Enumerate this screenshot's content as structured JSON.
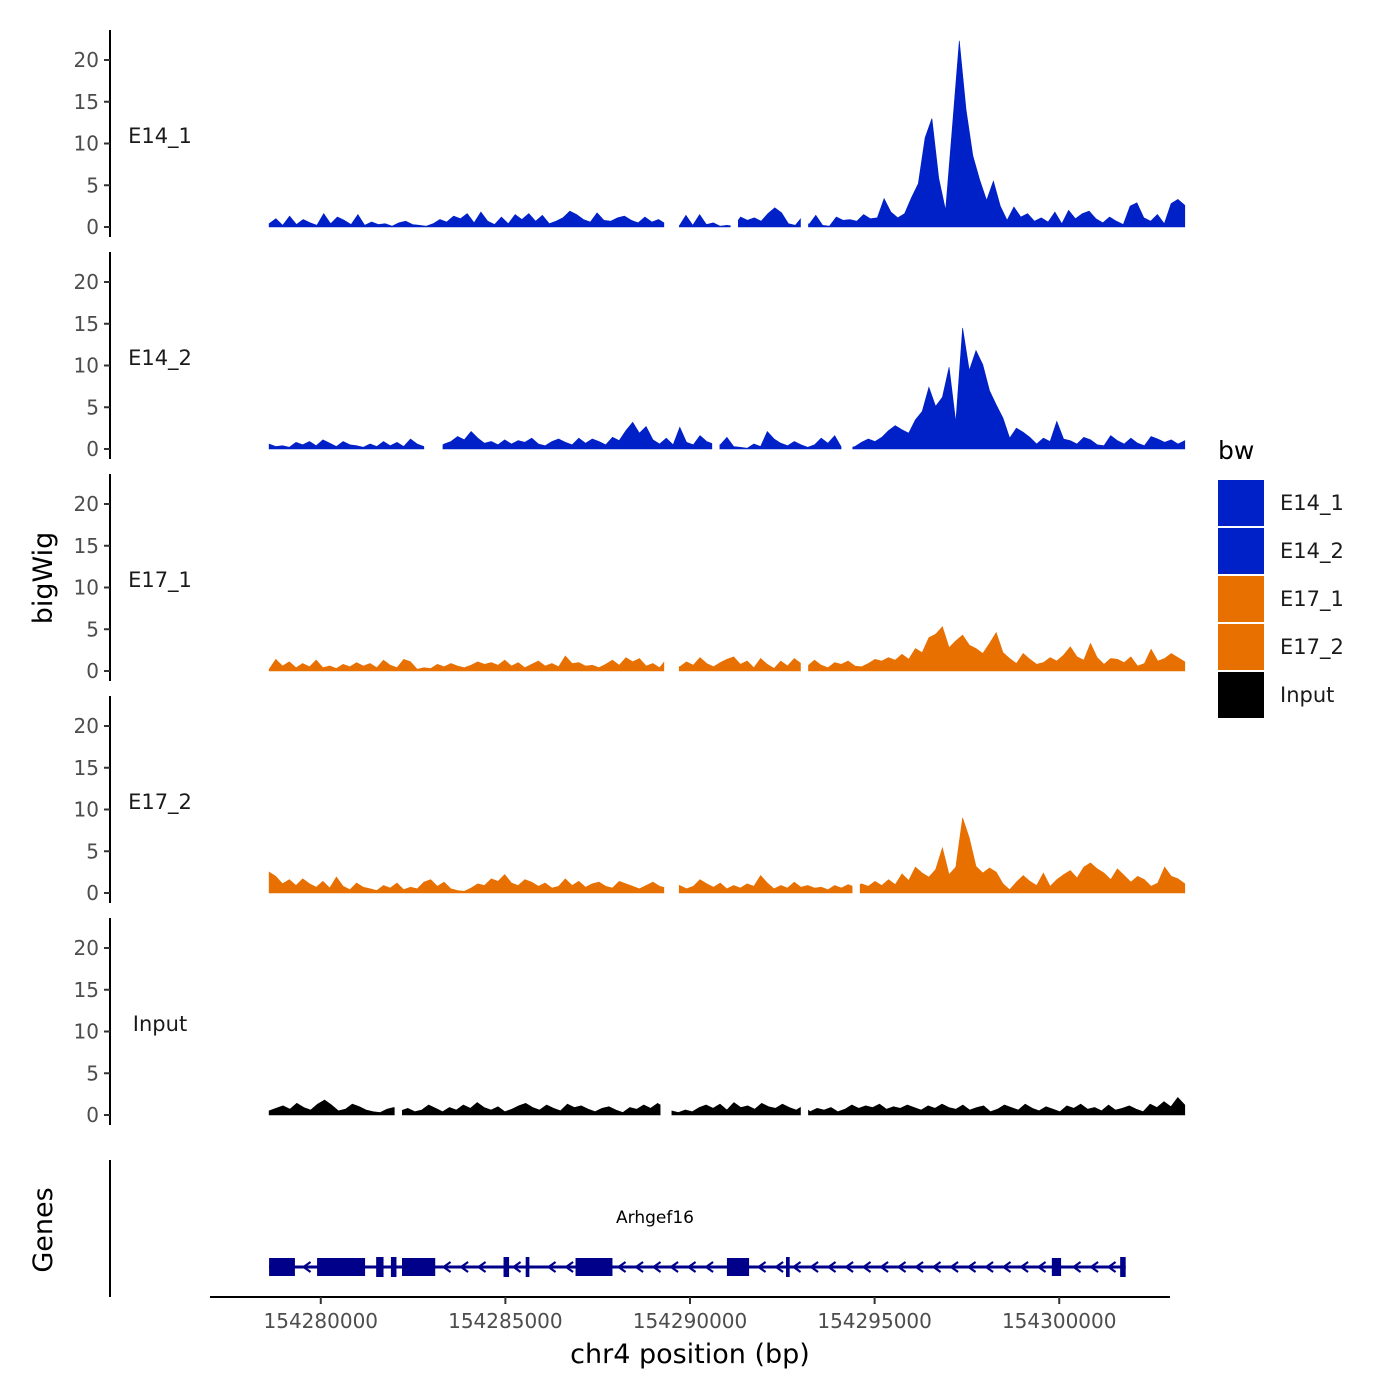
{
  "chart_data": {
    "type": "area",
    "title": "",
    "xlabel": "chr4 position (bp)",
    "ylabel": "bigWig",
    "genes_panel_label": "Genes",
    "xlim": [
      154277000,
      154303000
    ],
    "ylim": [
      0,
      24
    ],
    "x_ticks": [
      154280000,
      154285000,
      154290000,
      154295000,
      154300000
    ],
    "x_tick_labels": [
      "154280000",
      "154285000",
      "154290000",
      "154295000",
      "154300000"
    ],
    "y_ticks": [
      0,
      5,
      10,
      15,
      20
    ],
    "y_tick_labels": [
      "0",
      "5",
      "10",
      "15",
      "20"
    ],
    "x_start": 154278600,
    "x_end": 154303400,
    "legend": {
      "title": "bw",
      "position": "right",
      "entries": [
        {
          "label": "E14_1",
          "color": "#0020C8"
        },
        {
          "label": "E14_2",
          "color": "#0020C8"
        },
        {
          "label": "E17_1",
          "color": "#E87000"
        },
        {
          "label": "E17_2",
          "color": "#E87000"
        },
        {
          "label": "Input",
          "color": "#000000"
        }
      ]
    },
    "series": [
      {
        "name": "E14_1",
        "color": "#0020C8",
        "values": [
          0.4,
          1.0,
          0.2,
          1.3,
          0.3,
          0.9,
          0.5,
          0.2,
          1.6,
          0.4,
          1.2,
          0.8,
          0.3,
          1.5,
          0.2,
          0.6,
          0.3,
          0.4,
          0.1,
          0.5,
          0.7,
          0.3,
          0.2,
          0.1,
          0.4,
          0.9,
          0.6,
          1.3,
          1.0,
          1.6,
          0.5,
          1.8,
          0.7,
          0.3,
          1.2,
          0.4,
          1.5,
          0.9,
          1.6,
          0.7,
          1.4,
          0.4,
          0.7,
          1.1,
          1.9,
          1.5,
          0.9,
          0.6,
          1.7,
          0.8,
          0.7,
          1.1,
          1.3,
          0.8,
          0.5,
          1.2,
          0.6,
          0.9,
          0.4,
          0.2,
          0.1,
          1.4,
          0.2,
          1.5,
          0.3,
          0.5,
          0.1,
          0.2,
          0.1,
          1.2,
          0.8,
          1.1,
          0.7,
          1.6,
          2.3,
          1.7,
          0.4,
          0.2,
          1.2,
          0.3,
          1.4,
          0.2,
          0.1,
          1.2,
          0.8,
          0.9,
          0.7,
          1.5,
          1.0,
          1.1,
          3.4,
          1.8,
          1.1,
          1.6,
          3.5,
          5.2,
          10.7,
          13.0,
          5.8,
          2.0,
          12.0,
          22.3,
          14.0,
          8.5,
          5.6,
          3.2,
          5.5,
          2.5,
          0.8,
          2.4,
          1.2,
          1.6,
          0.7,
          1.1,
          0.6,
          1.8,
          0.4,
          2.0,
          1.0,
          1.6,
          1.9,
          1.0,
          0.5,
          1.2,
          0.7,
          0.3,
          2.5,
          2.9,
          1.1,
          0.7,
          1.5,
          0.4,
          2.8,
          3.3,
          2.6
        ],
        "gaps": [
          [
            154289300,
            154289700
          ],
          [
            154291100,
            154291300
          ],
          [
            154293000,
            154293200
          ]
        ]
      },
      {
        "name": "E14_2",
        "color": "#0020C8",
        "values": [
          0.6,
          0.3,
          0.4,
          0.2,
          0.8,
          0.5,
          0.9,
          0.4,
          1.1,
          0.7,
          0.3,
          0.9,
          0.5,
          0.4,
          0.2,
          0.6,
          0.3,
          0.9,
          0.4,
          0.8,
          0.3,
          1.2,
          0.6,
          0.3,
          0.2,
          0.1,
          0.6,
          0.9,
          1.5,
          1.1,
          2.1,
          1.3,
          0.7,
          0.9,
          0.5,
          1.1,
          0.6,
          1.0,
          0.8,
          1.3,
          0.6,
          0.4,
          0.9,
          1.2,
          0.8,
          0.5,
          1.3,
          0.7,
          1.2,
          0.9,
          0.5,
          1.4,
          1.0,
          2.2,
          3.2,
          1.9,
          2.7,
          1.1,
          0.6,
          1.3,
          0.5,
          2.6,
          0.8,
          0.5,
          1.6,
          0.9,
          0.6,
          0.5,
          1.4,
          0.3,
          0.2,
          0.1,
          0.6,
          0.3,
          2.1,
          1.2,
          0.7,
          0.4,
          0.9,
          0.5,
          0.2,
          0.5,
          1.3,
          0.7,
          1.6,
          0.2,
          0.1,
          0.3,
          0.8,
          1.2,
          0.9,
          1.4,
          2.2,
          2.8,
          2.3,
          1.9,
          3.5,
          4.5,
          7.4,
          5.1,
          6.2,
          9.8,
          3.2,
          14.5,
          9.4,
          11.8,
          10.1,
          7.0,
          5.3,
          3.7,
          1.3,
          2.5,
          2.0,
          1.4,
          0.6,
          1.3,
          0.9,
          3.3,
          1.2,
          1.0,
          0.6,
          1.4,
          1.1,
          0.5,
          0.4,
          1.6,
          1.0,
          0.6,
          1.3,
          0.7,
          0.4,
          1.5,
          1.2,
          0.8,
          1.1,
          0.6,
          1.0
        ],
        "gaps": [
          [
            154282800,
            154283300
          ],
          [
            154290600,
            154290800
          ],
          [
            154294100,
            154294400
          ]
        ]
      },
      {
        "name": "E17_1",
        "color": "#E87000",
        "values": [
          0.2,
          1.4,
          0.6,
          1.1,
          0.4,
          0.9,
          0.5,
          1.3,
          0.4,
          0.6,
          0.3,
          0.8,
          0.5,
          1.0,
          0.6,
          0.9,
          0.4,
          1.3,
          0.7,
          0.4,
          1.4,
          1.1,
          0.2,
          0.4,
          0.3,
          0.8,
          0.5,
          0.9,
          0.6,
          0.4,
          0.7,
          1.1,
          0.8,
          1.0,
          0.7,
          1.3,
          0.6,
          1.0,
          0.4,
          0.8,
          1.2,
          0.6,
          0.9,
          0.5,
          1.8,
          0.9,
          1.0,
          0.6,
          0.7,
          0.4,
          0.8,
          1.3,
          0.7,
          1.6,
          1.1,
          1.5,
          0.6,
          0.9,
          0.4,
          1.4,
          0.8,
          0.5,
          1.1,
          0.7,
          1.6,
          0.9,
          0.5,
          1.0,
          1.4,
          1.7,
          0.8,
          1.2,
          0.4,
          1.5,
          0.8,
          0.3,
          1.2,
          0.6,
          1.5,
          0.9,
          0.6,
          1.3,
          0.7,
          0.4,
          1.0,
          0.8,
          1.2,
          0.6,
          0.5,
          0.9,
          1.4,
          1.2,
          1.6,
          1.3,
          2.0,
          1.4,
          2.7,
          2.2,
          4.0,
          4.4,
          5.3,
          2.8,
          3.6,
          4.3,
          3.1,
          2.7,
          2.1,
          3.3,
          4.6,
          2.2,
          1.5,
          0.9,
          2.1,
          1.4,
          0.8,
          1.0,
          1.6,
          1.2,
          1.9,
          2.9,
          1.7,
          1.3,
          3.3,
          1.6,
          0.8,
          1.5,
          1.4,
          1.0,
          1.7,
          0.6,
          0.9,
          2.6,
          1.2,
          1.5,
          2.1,
          1.6,
          1.1
        ],
        "gaps": [
          [
            154289300,
            154289700
          ],
          [
            154293000,
            154293200
          ]
        ]
      },
      {
        "name": "E17_2",
        "color": "#E87000",
        "values": [
          2.5,
          2.0,
          1.1,
          1.6,
          0.9,
          1.7,
          1.1,
          0.7,
          1.4,
          0.6,
          1.9,
          0.8,
          0.4,
          1.2,
          0.7,
          0.5,
          0.3,
          0.9,
          0.6,
          1.2,
          0.4,
          0.7,
          0.5,
          1.3,
          1.6,
          0.8,
          1.3,
          0.5,
          0.3,
          0.2,
          0.6,
          1.1,
          0.9,
          1.7,
          1.4,
          2.2,
          1.2,
          0.9,
          1.6,
          1.3,
          0.8,
          1.2,
          0.6,
          0.8,
          1.7,
          0.9,
          1.4,
          0.7,
          1.1,
          1.3,
          0.8,
          0.6,
          1.4,
          1.1,
          0.8,
          0.5,
          0.9,
          1.3,
          0.8,
          0.6,
          1.2,
          0.9,
          0.5,
          0.8,
          1.6,
          1.1,
          0.7,
          1.2,
          0.5,
          0.9,
          0.6,
          1.1,
          0.8,
          2.1,
          1.2,
          0.5,
          0.9,
          0.6,
          1.3,
          0.7,
          0.9,
          0.6,
          0.7,
          0.4,
          0.9,
          0.6,
          1.0,
          0.7,
          1.1,
          0.8,
          1.4,
          0.9,
          1.6,
          1.0,
          2.3,
          1.5,
          3.1,
          2.4,
          1.9,
          2.8,
          5.4,
          2.2,
          3.1,
          9.0,
          6.6,
          3.2,
          2.4,
          3.0,
          2.5,
          1.1,
          0.4,
          1.3,
          2.1,
          1.4,
          0.9,
          2.4,
          0.8,
          1.6,
          2.2,
          2.7,
          1.8,
          3.1,
          3.6,
          2.9,
          2.4,
          1.6,
          2.9,
          2.1,
          1.3,
          2.0,
          1.6,
          0.8,
          1.2,
          3.1,
          2.0,
          1.7,
          1.1
        ],
        "gaps": [
          [
            154289300,
            154289700
          ],
          [
            154294400,
            154294600
          ]
        ]
      },
      {
        "name": "Input",
        "color": "#000000",
        "values": [
          0.5,
          0.8,
          1.1,
          0.7,
          1.4,
          0.9,
          0.6,
          1.3,
          1.8,
          1.2,
          0.5,
          0.7,
          1.3,
          1.0,
          0.6,
          0.4,
          0.3,
          0.7,
          0.9,
          0.5,
          0.8,
          0.4,
          0.6,
          1.2,
          0.8,
          0.4,
          0.9,
          0.6,
          1.2,
          0.8,
          1.5,
          0.9,
          0.6,
          1.0,
          0.4,
          0.7,
          1.1,
          1.4,
          0.9,
          0.6,
          1.2,
          0.8,
          0.5,
          1.3,
          0.9,
          1.1,
          0.7,
          0.4,
          0.8,
          1.0,
          0.6,
          0.3,
          0.9,
          0.7,
          1.2,
          0.8,
          1.4,
          0.9,
          0.5,
          0.3,
          0.6,
          0.4,
          0.9,
          1.2,
          0.8,
          1.3,
          0.6,
          1.5,
          0.9,
          1.1,
          0.7,
          1.4,
          1.0,
          0.8,
          1.3,
          0.9,
          0.6,
          1.1,
          0.4,
          0.8,
          0.6,
          0.9,
          0.4,
          0.7,
          1.2,
          0.8,
          1.1,
          0.9,
          1.3,
          0.7,
          1.0,
          0.8,
          1.2,
          0.9,
          0.6,
          1.1,
          0.8,
          1.3,
          0.9,
          0.7,
          1.2,
          0.6,
          0.9,
          1.1,
          0.4,
          0.7,
          1.2,
          0.9,
          0.6,
          1.3,
          0.8,
          0.5,
          1.0,
          0.7,
          0.4,
          1.1,
          0.8,
          1.3,
          0.7,
          0.9,
          0.5,
          1.2,
          0.6,
          0.8,
          1.1,
          0.7,
          0.4,
          1.3,
          0.9,
          1.6,
          1.0,
          2.1,
          1.2
        ],
        "gaps": [
          [
            154282000,
            154282200
          ],
          [
            154289200,
            154289500
          ],
          [
            154293000,
            154293200
          ]
        ]
      }
    ],
    "gene": {
      "name": "Arhgef16",
      "strand": "-",
      "start": 154278600,
      "end": 154301800,
      "color": "#00008B",
      "exons": [
        [
          154278600,
          154279300
        ],
        [
          154279900,
          154281200
        ],
        [
          154281500,
          154281700
        ],
        [
          154281900,
          154282050
        ],
        [
          154282200,
          154283100
        ],
        [
          154284950,
          154285100
        ],
        [
          154285550,
          154285650
        ],
        [
          154286900,
          154287900
        ],
        [
          154291000,
          154291600
        ],
        [
          154292600,
          154292700
        ],
        [
          154299800,
          154300050
        ],
        [
          154301650,
          154301800
        ]
      ]
    }
  }
}
